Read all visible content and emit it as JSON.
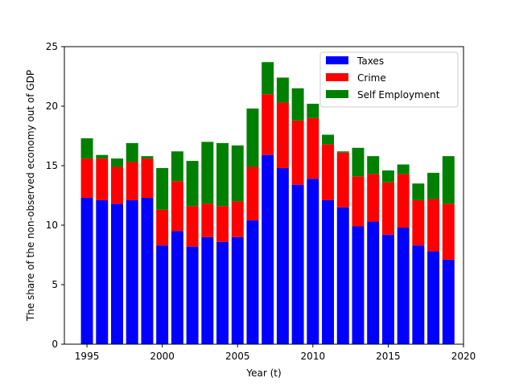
{
  "chart_data": {
    "type": "bar",
    "stacked": true,
    "xlabel": "Year (t)",
    "ylabel": "The share of the non-observed economy out of GDP",
    "xlim": [
      1993.5,
      2020
    ],
    "ylim": [
      0,
      25
    ],
    "xticks": [
      1995,
      2000,
      2005,
      2010,
      2015,
      2020
    ],
    "yticks": [
      0,
      5,
      10,
      15,
      20,
      25
    ],
    "grid": false,
    "legend_position": "upper right",
    "x": [
      1995,
      1996,
      1997,
      1998,
      1999,
      2000,
      2001,
      2002,
      2003,
      2004,
      2005,
      2006,
      2007,
      2008,
      2009,
      2010,
      2011,
      2012,
      2013,
      2014,
      2015,
      2016,
      2017,
      2018,
      2019
    ],
    "series": [
      {
        "name": "Taxes",
        "color": "#0000ff",
        "values": [
          12.3,
          12.1,
          11.8,
          12.1,
          12.3,
          8.3,
          9.5,
          8.2,
          9.0,
          8.6,
          9.0,
          10.4,
          15.9,
          14.8,
          13.4,
          13.9,
          12.1,
          11.5,
          9.9,
          10.3,
          9.2,
          9.8,
          8.3,
          7.8,
          7.1
        ]
      },
      {
        "name": "Crime",
        "color": "#ff0000",
        "values": [
          3.3,
          3.5,
          3.1,
          3.2,
          3.3,
          3.0,
          4.2,
          3.4,
          2.8,
          3.0,
          3.0,
          4.5,
          5.1,
          5.5,
          5.4,
          5.1,
          4.7,
          4.6,
          4.2,
          4.0,
          4.4,
          4.5,
          3.8,
          4.4,
          4.7
        ]
      },
      {
        "name": "Self Employment",
        "color": "#008000",
        "values": [
          1.7,
          0.3,
          0.7,
          1.6,
          0.2,
          3.5,
          2.5,
          3.8,
          5.2,
          5.3,
          4.7,
          4.9,
          2.7,
          2.1,
          2.7,
          1.2,
          0.8,
          0.1,
          2.4,
          1.5,
          1.0,
          0.8,
          1.4,
          2.2,
          4.0
        ]
      }
    ]
  }
}
